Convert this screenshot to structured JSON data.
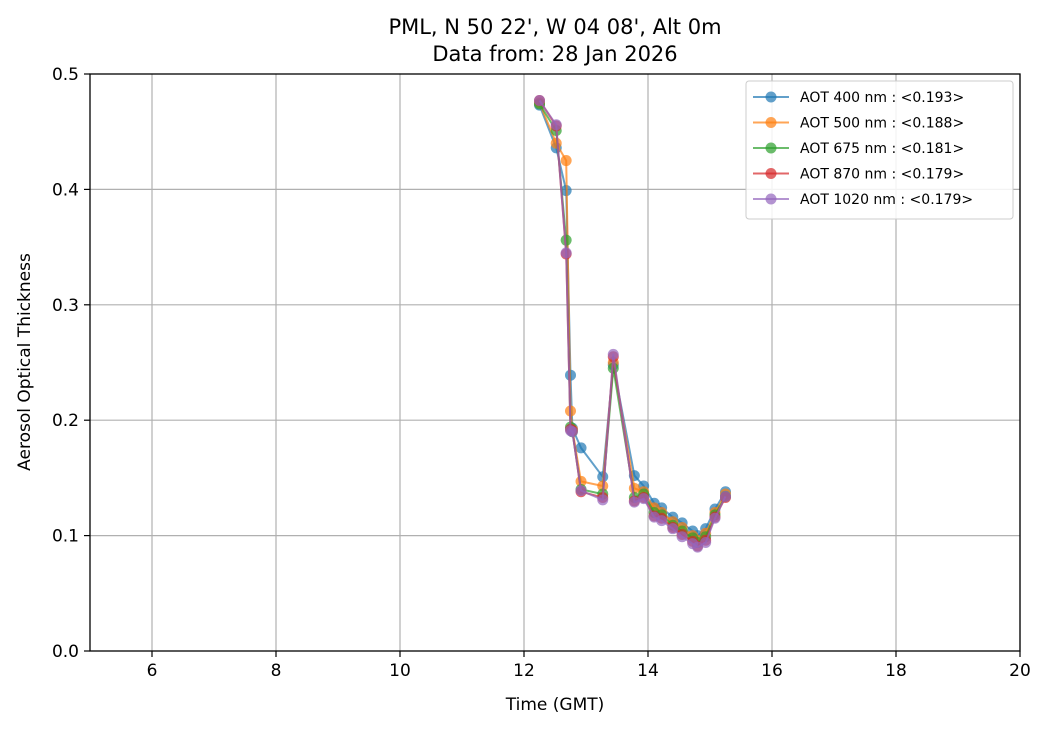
{
  "chart_data": {
    "type": "line",
    "title_line1": "PML, N 50 22', W 04 08', Alt 0m",
    "title_line2": "Data from: 28 Jan 2026",
    "xlabel": "Time (GMT)",
    "ylabel": "Aerosol Optical Thickness",
    "xlim": [
      5,
      20
    ],
    "ylim": [
      0,
      0.5
    ],
    "xticks": [
      6,
      8,
      10,
      12,
      14,
      16,
      18,
      20
    ],
    "xtick_labels": [
      "6",
      "8",
      "10",
      "12",
      "14",
      "16",
      "18",
      "20"
    ],
    "yticks": [
      0,
      0.1,
      0.2,
      0.3,
      0.4,
      0.5
    ],
    "ytick_labels": [
      "0.0",
      "0.1",
      "0.2",
      "0.3",
      "0.4",
      "0.5"
    ],
    "grid": true,
    "legend_position": "top-right",
    "series": [
      {
        "name": "AOT 400 nm : <0.193>",
        "color": "#1f77b4",
        "x": [
          12.25,
          12.52,
          12.68,
          12.75,
          12.78,
          12.92,
          13.27,
          13.44,
          13.78,
          13.93,
          14.1,
          14.22,
          14.4,
          14.55,
          14.72,
          14.8,
          14.93,
          15.08,
          15.25
        ],
        "y": [
          0.473,
          0.436,
          0.399,
          0.239,
          0.193,
          0.176,
          0.151,
          0.248,
          0.152,
          0.143,
          0.128,
          0.124,
          0.116,
          0.111,
          0.104,
          0.1,
          0.106,
          0.123,
          0.138
        ]
      },
      {
        "name": "AOT 500 nm : <0.188>",
        "color": "#ff7f0e",
        "x": [
          12.25,
          12.52,
          12.68,
          12.75,
          12.78,
          12.92,
          13.27,
          13.44,
          13.78,
          13.93,
          14.1,
          14.22,
          14.4,
          14.55,
          14.72,
          14.8,
          14.93,
          15.08,
          15.25
        ],
        "y": [
          0.475,
          0.44,
          0.425,
          0.208,
          0.192,
          0.147,
          0.143,
          0.25,
          0.141,
          0.138,
          0.124,
          0.12,
          0.112,
          0.107,
          0.1,
          0.096,
          0.102,
          0.12,
          0.136
        ]
      },
      {
        "name": "AOT 675 nm : <0.181>",
        "color": "#2ca02c",
        "x": [
          12.25,
          12.52,
          12.68,
          12.75,
          12.78,
          12.92,
          13.27,
          13.44,
          13.78,
          13.93,
          14.1,
          14.22,
          14.4,
          14.55,
          14.72,
          14.8,
          14.93,
          15.08,
          15.25
        ],
        "y": [
          0.474,
          0.451,
          0.356,
          0.194,
          0.19,
          0.14,
          0.136,
          0.245,
          0.133,
          0.136,
          0.12,
          0.118,
          0.109,
          0.104,
          0.098,
          0.094,
          0.099,
          0.118,
          0.134
        ]
      },
      {
        "name": "AOT 870 nm : <0.179>",
        "color": "#d62728",
        "x": [
          12.25,
          12.52,
          12.68,
          12.75,
          12.78,
          12.92,
          13.27,
          13.44,
          13.78,
          13.93,
          14.1,
          14.22,
          14.4,
          14.55,
          14.72,
          14.8,
          14.93,
          15.08,
          15.25
        ],
        "y": [
          0.477,
          0.455,
          0.344,
          0.192,
          0.191,
          0.138,
          0.133,
          0.255,
          0.13,
          0.133,
          0.117,
          0.115,
          0.107,
          0.101,
          0.095,
          0.091,
          0.096,
          0.116,
          0.133
        ]
      },
      {
        "name": "AOT 1020 nm : <0.179>",
        "color": "#9467bd",
        "x": [
          12.25,
          12.52,
          12.68,
          12.75,
          12.78,
          12.92,
          13.27,
          13.44,
          13.78,
          13.93,
          14.1,
          14.22,
          14.4,
          14.55,
          14.72,
          14.8,
          14.93,
          15.08,
          15.25
        ],
        "y": [
          0.477,
          0.456,
          0.345,
          0.191,
          0.19,
          0.139,
          0.131,
          0.257,
          0.129,
          0.132,
          0.116,
          0.113,
          0.106,
          0.099,
          0.093,
          0.09,
          0.094,
          0.115,
          0.134
        ]
      }
    ]
  }
}
